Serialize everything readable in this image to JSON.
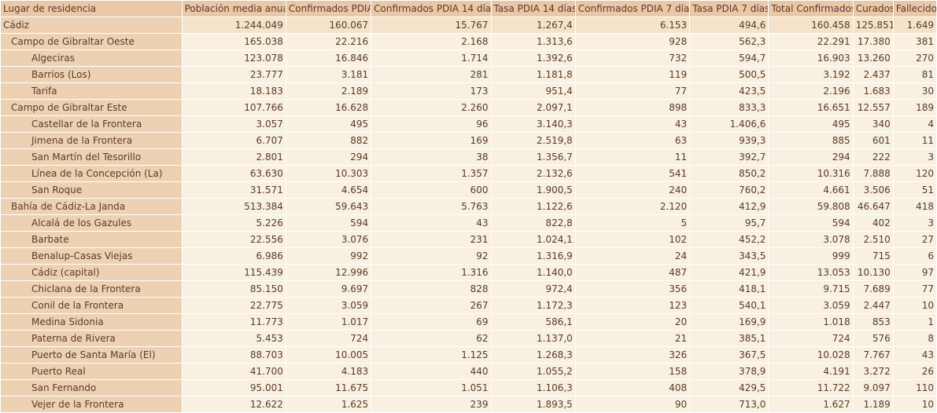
{
  "columns": [
    "Lugar de residencia",
    "Población media anual",
    "Confirmados PDIA",
    "Confirmados PDIA 14 días",
    "Tasa PDIA 14 días",
    "Confirmados PDIA 7 días",
    "Tasa PDIA 7 días",
    "Total Confirmados",
    "Curados",
    "Fallecidos"
  ],
  "rows": [
    {
      "level": 0,
      "cells": [
        "Cádiz",
        "1.244.049",
        "160.067",
        "15.767",
        "1.267,4",
        "6.153",
        "494,6",
        "160.458",
        "125.851",
        "1.649"
      ]
    },
    {
      "level": 1,
      "cells": [
        "Campo de Gibraltar Oeste",
        "165.038",
        "22.216",
        "2.168",
        "1.313,6",
        "928",
        "562,3",
        "22.291",
        "17.380",
        "381"
      ]
    },
    {
      "level": 2,
      "cells": [
        "Algeciras",
        "123.078",
        "16.846",
        "1.714",
        "1.392,6",
        "732",
        "594,7",
        "16.903",
        "13.260",
        "270"
      ]
    },
    {
      "level": 2,
      "cells": [
        "Barrios (Los)",
        "23.777",
        "3.181",
        "281",
        "1.181,8",
        "119",
        "500,5",
        "3.192",
        "2.437",
        "81"
      ]
    },
    {
      "level": 2,
      "cells": [
        "Tarifa",
        "18.183",
        "2.189",
        "173",
        "951,4",
        "77",
        "423,5",
        "2.196",
        "1.683",
        "30"
      ]
    },
    {
      "level": 1,
      "cells": [
        "Campo de Gibraltar Este",
        "107.766",
        "16.628",
        "2.260",
        "2.097,1",
        "898",
        "833,3",
        "16.651",
        "12.557",
        "189"
      ]
    },
    {
      "level": 2,
      "cells": [
        "Castellar de la Frontera",
        "3.057",
        "495",
        "96",
        "3.140,3",
        "43",
        "1.406,6",
        "495",
        "340",
        "4"
      ]
    },
    {
      "level": 2,
      "cells": [
        "Jimena de la Frontera",
        "6.707",
        "882",
        "169",
        "2.519,8",
        "63",
        "939,3",
        "885",
        "601",
        "11"
      ]
    },
    {
      "level": 2,
      "cells": [
        "San Martín del Tesorillo",
        "2.801",
        "294",
        "38",
        "1.356,7",
        "11",
        "392,7",
        "294",
        "222",
        "3"
      ]
    },
    {
      "level": 2,
      "cells": [
        "Línea de la Concepción (La)",
        "63.630",
        "10.303",
        "1.357",
        "2.132,6",
        "541",
        "850,2",
        "10.316",
        "7.888",
        "120"
      ]
    },
    {
      "level": 2,
      "cells": [
        "San Roque",
        "31.571",
        "4.654",
        "600",
        "1.900,5",
        "240",
        "760,2",
        "4.661",
        "3.506",
        "51"
      ]
    },
    {
      "level": 1,
      "cells": [
        "Bahía de Cádiz-La Janda",
        "513.384",
        "59.643",
        "5.763",
        "1.122,6",
        "2.120",
        "412,9",
        "59.808",
        "46.647",
        "418"
      ]
    },
    {
      "level": 2,
      "cells": [
        "Alcalá de los Gazules",
        "5.226",
        "594",
        "43",
        "822,8",
        "5",
        "95,7",
        "594",
        "402",
        "3"
      ]
    },
    {
      "level": 2,
      "cells": [
        "Barbate",
        "22.556",
        "3.076",
        "231",
        "1.024,1",
        "102",
        "452,2",
        "3.078",
        "2.510",
        "27"
      ]
    },
    {
      "level": 2,
      "cells": [
        "Benalup-Casas Viejas",
        "6.986",
        "992",
        "92",
        "1.316,9",
        "24",
        "343,5",
        "999",
        "715",
        "6"
      ]
    },
    {
      "level": 2,
      "cells": [
        "Cádiz (capital)",
        "115.439",
        "12.996",
        "1.316",
        "1.140,0",
        "487",
        "421,9",
        "13.053",
        "10.130",
        "97"
      ]
    },
    {
      "level": 2,
      "cells": [
        "Chiclana de la Frontera",
        "85.150",
        "9.697",
        "828",
        "972,4",
        "356",
        "418,1",
        "9.715",
        "7.689",
        "77"
      ]
    },
    {
      "level": 2,
      "cells": [
        "Conil de la Frontera",
        "22.775",
        "3.059",
        "267",
        "1.172,3",
        "123",
        "540,1",
        "3.059",
        "2.447",
        "10"
      ]
    },
    {
      "level": 2,
      "cells": [
        "Medina Sidonia",
        "11.773",
        "1.017",
        "69",
        "586,1",
        "20",
        "169,9",
        "1.018",
        "853",
        "1"
      ]
    },
    {
      "level": 2,
      "cells": [
        "Paterna de Rivera",
        "5.453",
        "724",
        "62",
        "1.137,0",
        "21",
        "385,1",
        "724",
        "576",
        "8"
      ]
    },
    {
      "level": 2,
      "cells": [
        "Puerto de Santa María (El)",
        "88.703",
        "10.005",
        "1.125",
        "1.268,3",
        "326",
        "367,5",
        "10.028",
        "7.767",
        "43"
      ]
    },
    {
      "level": 2,
      "cells": [
        "Puerto Real",
        "41.700",
        "4.183",
        "440",
        "1.055,2",
        "158",
        "378,9",
        "4.191",
        "3.272",
        "26"
      ]
    },
    {
      "level": 2,
      "cells": [
        "San Fernando",
        "95.001",
        "11.675",
        "1.051",
        "1.106,3",
        "408",
        "429,5",
        "11.722",
        "9.097",
        "110"
      ]
    },
    {
      "level": 2,
      "cells": [
        "Vejer de la Frontera",
        "12.622",
        "1.625",
        "239",
        "1.893,5",
        "90",
        "713,0",
        "1.627",
        "1.189",
        "10"
      ]
    }
  ]
}
